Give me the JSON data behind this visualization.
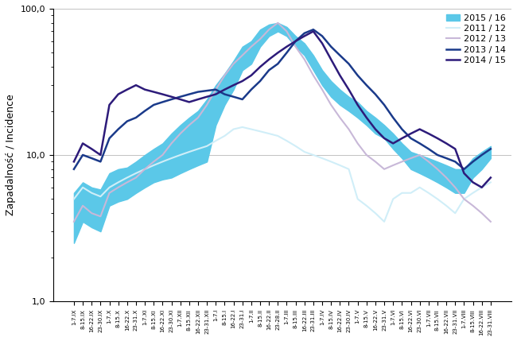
{
  "title": "",
  "ylabel": "Zapadalność / Incidence",
  "xlabel": "",
  "ylim_log": [
    1.0,
    100.0
  ],
  "yticks": [
    1.0,
    10.0,
    100.0
  ],
  "ytick_labels": [
    "1,0",
    "10,0",
    "100,0"
  ],
  "background_color": "#ffffff",
  "plot_bg": "#ffffff",
  "x_labels": [
    "1-7.IX",
    "8-15.IX",
    "16-22.IX",
    "23-30.IX",
    "1-7.X",
    "8-15.X",
    "16-22.X",
    "23-31.X",
    "1-7.XI",
    "8-15.XI",
    "16-22.XI",
    "23-30.XI",
    "1-7.XII",
    "8-15.XII",
    "16-22.XII",
    "23-31.XII",
    "1-7.I",
    "8-15.I",
    "16-22.I",
    "23-31.I",
    "1-7.II",
    "8-15.II",
    "16-22.II",
    "23-28.II",
    "1-7.III",
    "8-15.III",
    "16-22.III",
    "23-31.III",
    "1-7.IV",
    "8-15.IV",
    "16-22.IV",
    "23-30.IV",
    "1-7.V",
    "8-15.V",
    "16-22.V",
    "23-31.V",
    "1-7.VI",
    "8-15.VI",
    "16-22.VI",
    "23-30.VI",
    "1-7.VII",
    "8-15.VII",
    "16-22.VII",
    "23-31.VII",
    "1-7.VIII",
    "8-15.VIII",
    "16-22.VIII",
    "23-31.VIII"
  ],
  "band_2015_16_lower": [
    2.5,
    3.5,
    3.2,
    3.0,
    4.5,
    4.8,
    5.0,
    5.5,
    6.0,
    6.5,
    6.8,
    7.0,
    7.5,
    8.0,
    8.5,
    9.0,
    16.0,
    22.0,
    28.0,
    38.0,
    42.0,
    55.0,
    65.0,
    70.0,
    65.0,
    55.0,
    48.0,
    38.0,
    30.0,
    25.0,
    22.0,
    20.0,
    18.0,
    16.0,
    14.0,
    13.0,
    11.0,
    9.5,
    8.0,
    7.5,
    7.0,
    6.5,
    6.0,
    5.5,
    5.5,
    7.0,
    8.0,
    9.5
  ],
  "band_2015_16_upper": [
    5.5,
    6.5,
    6.0,
    5.8,
    7.5,
    8.0,
    8.2,
    9.0,
    10.0,
    11.0,
    12.0,
    14.0,
    16.0,
    18.0,
    20.0,
    24.0,
    30.0,
    36.0,
    44.0,
    55.0,
    60.0,
    72.0,
    78.0,
    80.0,
    75.0,
    65.0,
    58.0,
    48.0,
    38.0,
    32.0,
    28.0,
    25.0,
    23.0,
    20.0,
    18.0,
    16.0,
    14.0,
    12.0,
    10.5,
    10.0,
    9.5,
    9.0,
    8.5,
    8.0,
    8.0,
    9.5,
    10.5,
    11.5
  ],
  "line_2011_12": [
    5.0,
    6.0,
    5.5,
    5.2,
    6.0,
    6.5,
    7.0,
    7.5,
    8.0,
    8.5,
    9.0,
    9.5,
    10.0,
    10.5,
    11.0,
    11.5,
    12.5,
    13.5,
    15.0,
    15.5,
    15.0,
    14.5,
    14.0,
    13.5,
    12.5,
    11.5,
    10.5,
    10.0,
    9.5,
    9.0,
    8.5,
    8.0,
    5.0,
    4.5,
    4.0,
    3.5,
    5.0,
    5.5,
    5.5,
    6.0,
    5.5,
    5.0,
    4.5,
    4.0,
    5.0,
    5.5,
    6.0,
    6.5
  ],
  "line_2012_13": [
    3.5,
    4.5,
    4.0,
    3.8,
    5.5,
    6.0,
    6.5,
    7.0,
    8.0,
    9.0,
    10.0,
    12.0,
    14.0,
    16.0,
    18.0,
    22.0,
    28.0,
    35.0,
    42.0,
    48.0,
    55.0,
    62.0,
    72.0,
    80.0,
    70.0,
    55.0,
    45.0,
    35.0,
    28.0,
    22.0,
    18.0,
    15.0,
    12.0,
    10.0,
    9.0,
    8.0,
    8.5,
    9.0,
    9.5,
    10.0,
    9.0,
    8.0,
    7.0,
    6.0,
    5.0,
    4.5,
    4.0,
    3.5
  ],
  "line_2013_14": [
    8.0,
    10.0,
    9.5,
    9.0,
    13.0,
    15.0,
    17.0,
    18.0,
    20.0,
    22.0,
    23.0,
    24.0,
    25.0,
    26.0,
    27.0,
    27.5,
    28.0,
    26.0,
    25.0,
    24.0,
    28.0,
    32.0,
    38.0,
    42.0,
    50.0,
    60.0,
    68.0,
    72.0,
    65.0,
    55.0,
    48.0,
    42.0,
    35.0,
    30.0,
    26.0,
    22.0,
    18.0,
    15.0,
    13.0,
    12.0,
    11.0,
    10.0,
    9.5,
    9.0,
    8.0,
    9.0,
    10.0,
    11.0
  ],
  "line_2014_15": [
    9.0,
    12.0,
    11.0,
    10.0,
    22.0,
    26.0,
    28.0,
    30.0,
    28.0,
    27.0,
    26.0,
    25.0,
    24.0,
    23.0,
    24.0,
    25.0,
    26.0,
    28.0,
    30.0,
    32.0,
    35.0,
    40.0,
    45.0,
    50.0,
    55.0,
    60.0,
    65.0,
    70.0,
    58.0,
    45.0,
    35.0,
    28.0,
    22.0,
    18.0,
    15.0,
    13.0,
    12.0,
    13.0,
    14.0,
    15.0,
    14.0,
    13.0,
    12.0,
    11.0,
    7.5,
    6.5,
    6.0,
    7.0
  ],
  "color_band": "#5bc8e8",
  "color_band_edge": "#5bc8e8",
  "color_2011_12": "#d0eef8",
  "color_2012_13": "#c8b8d8",
  "color_2013_14": "#1a3a8a",
  "color_2014_15": "#2d1b7a",
  "legend_labels": [
    "2015 / 16",
    "2011 / 12",
    "2012 / 13",
    "2013 / 14",
    "2014 / 15"
  ]
}
